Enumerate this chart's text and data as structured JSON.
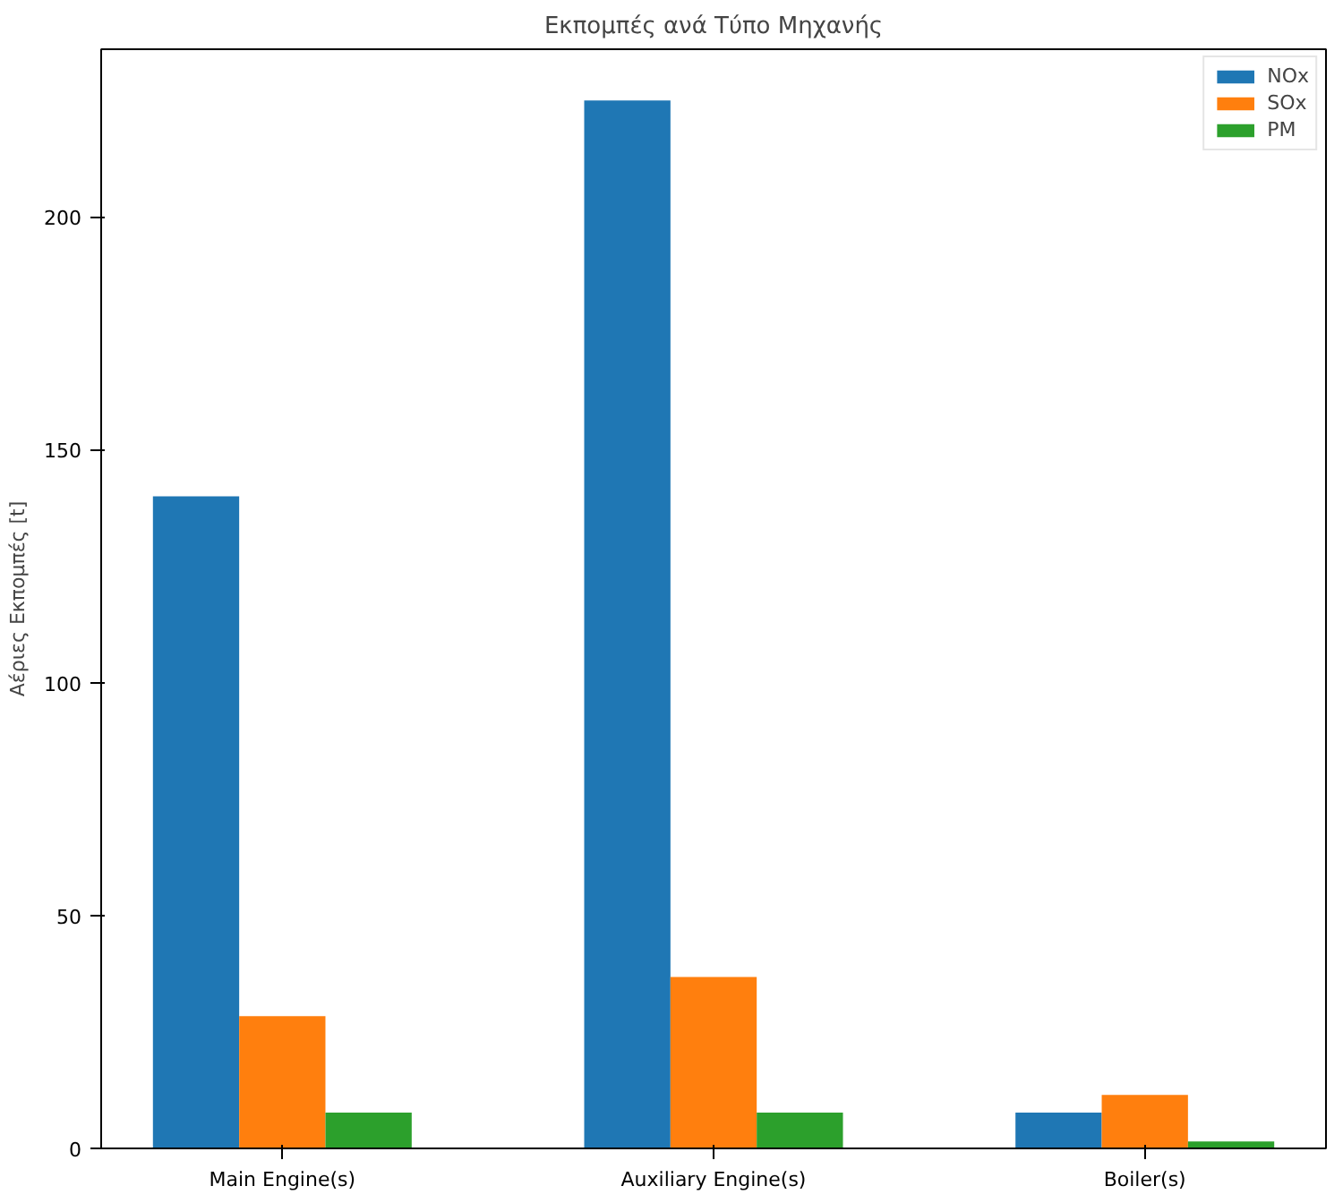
{
  "chart_data": {
    "type": "bar",
    "title": "Εκπομπές ανά Τύπο Μηχανής",
    "ylabel": "Αέριες Εκπομπές [t]",
    "categories": [
      "Main Engine(s)",
      "Auxiliary Engine(s)",
      "Boiler(s)"
    ],
    "series": [
      {
        "name": "NOx",
        "color": "#1f77b4",
        "values": [
          140,
          225,
          7.7
        ]
      },
      {
        "name": "SOx",
        "color": "#ff7f0e",
        "values": [
          28.4,
          36.8,
          11.5
        ]
      },
      {
        "name": "PM",
        "color": "#2ca02c",
        "values": [
          7.7,
          7.7,
          1.5
        ]
      }
    ],
    "ylim": [
      0,
      236
    ],
    "yticks": [
      0,
      50,
      100,
      150,
      200
    ],
    "grid": false,
    "legend": "top right"
  }
}
